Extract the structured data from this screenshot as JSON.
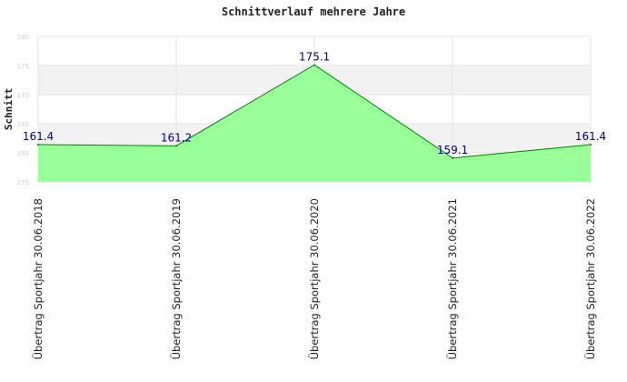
{
  "chart_data": {
    "type": "area",
    "title": "Schnittverlauf mehrere Jahre",
    "ylabel": "Schnitt",
    "xlabel": "",
    "categories": [
      "Übertrag Sportjahr 30.06.2018",
      "Übertrag Sportjahr 30.06.2019",
      "Übertrag Sportjahr 30.06.2020",
      "Übertrag Sportjahr 30.06.2021",
      "Übertrag Sportjahr 30.06.2022"
    ],
    "values": [
      161.4,
      161.2,
      175.1,
      159.1,
      161.4
    ],
    "value_labels": [
      "161.4",
      "161.2",
      "175.1",
      "159.1",
      "161.4"
    ],
    "y_ticks": [
      {
        "value": 155,
        "label": "155"
      },
      {
        "value": 160,
        "label": "160"
      },
      {
        "value": 165,
        "label": "165"
      },
      {
        "value": 170,
        "label": "170"
      },
      {
        "value": 175,
        "label": "175"
      },
      {
        "value": 180,
        "label": "180"
      }
    ],
    "ylim": [
      155,
      180
    ],
    "grid": true,
    "banded_background": true,
    "colors": {
      "fill": "#99ff99",
      "line": "#008000",
      "value_label": "#000080",
      "band": "#f2f2f2",
      "grid": "#e6e6e6",
      "tick_label": "#cccccc"
    }
  }
}
